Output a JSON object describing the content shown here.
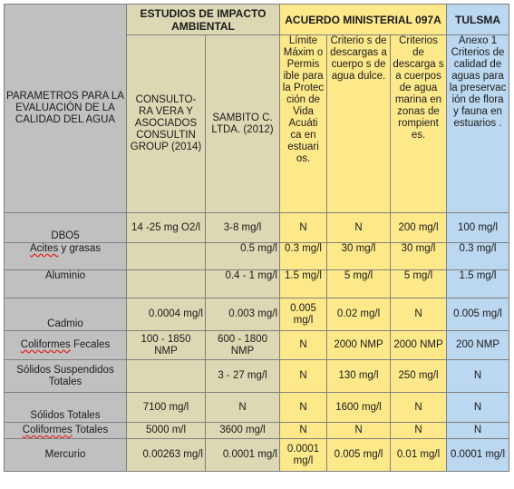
{
  "headers": {
    "param_col": "PARAMETROS PARA LA EVALUACIÓN DE LA CALIDAD DEL AGUA",
    "group_eia": "ESTUDIOS DE IMPACTO AMBIENTAL",
    "group_acuerdo": "ACUERDO MINISTERIAL 097A",
    "group_tulsma": "TULSMA",
    "sub": [
      "CONSULTO-RA VERA Y ASOCIADOS CONSULTIN GROUP (2014)",
      "SAMBITO C. LTDA. (2012)",
      "Límite Máxim o Permis ible para la Protec ción de Vida Acuáti ca en estuari os.",
      "Criterio s de descargas a cuerpo s de agua dulce.",
      "Criterios de descarga s a cuerpos de agua marina en zonas de rompient es.",
      "Anexo 1 Criterios de calidad de aguas para la preservac ión de flora y fauna en estuarios ."
    ]
  },
  "rows": [
    {
      "param": "DBO5",
      "consultora": "14 -25 mg O2/l",
      "sambito": "3-8 mg/l",
      "limite_estuarios": "N",
      "agua_dulce": "N",
      "agua_marina": "200 mg/l",
      "tulsma": "100 mg/l"
    },
    {
      "param_a": "Acites",
      "param_b": " y grasas",
      "consultora": "",
      "sambito": "0.5 mg/l",
      "limite_estuarios": "0.3 mg/l",
      "agua_dulce": "30 mg/l",
      "agua_marina": "30 mg/l",
      "tulsma": "0.3 mg/l"
    },
    {
      "param": "Aluminio",
      "consultora": "",
      "sambito": "0.4 - 1 mg/l",
      "limite_estuarios": "1.5 mg/l",
      "agua_dulce": "5 mg/l",
      "agua_marina": "5 mg/l",
      "tulsma": "1.5 mg/l"
    },
    {
      "param": "Cadmio",
      "consultora": "0.0004 mg/l",
      "sambito": "0.003 mg/l",
      "limite_estuarios": "0.005 mg/l",
      "agua_dulce": "0.02 mg/l",
      "agua_marina": "N",
      "tulsma": "0.005 mg/l"
    },
    {
      "param_a": "Coliformes",
      "param_b": " Fecales",
      "consultora": "100 - 1850 NMP",
      "sambito": "600 - 1800 NMP",
      "limite_estuarios": "N",
      "agua_dulce": "2000 NMP",
      "agua_marina": "2000 NMP",
      "tulsma": "200 NMP"
    },
    {
      "param": "Sólidos Suspendidos Totales",
      "consultora": "",
      "sambito": "3 - 27 mg/l",
      "limite_estuarios": "N",
      "agua_dulce": "130 mg/l",
      "agua_marina": "250 mg/l",
      "tulsma": "N"
    },
    {
      "param": "Sólidos Totales",
      "consultora": "7100 mg/l",
      "sambito": "N",
      "limite_estuarios": "N",
      "agua_dulce": "1600 mg/l",
      "agua_marina": "N",
      "tulsma": "N"
    },
    {
      "param_a": "Coliformes",
      "param_b": " Totales",
      "consultora": "5000 m/l",
      "sambito": "3600 mg/l",
      "limite_estuarios": "N",
      "agua_dulce": "N",
      "agua_marina": "N",
      "tulsma": "N"
    },
    {
      "param": "Mercurio",
      "consultora": "0.00263 mg/l",
      "sambito": "0.0001 mg/l",
      "limite_estuarios": "0.0001 mg/l",
      "agua_dulce": "0.005 mg/l",
      "agua_marina": "0.01 mg/l",
      "tulsma": "0.0001 mg/l"
    }
  ],
  "colors": {
    "grey": "#c0c0c0",
    "tan": "#ddd8b4",
    "yellow": "#fde98a",
    "blue": "#bcd7f0"
  }
}
